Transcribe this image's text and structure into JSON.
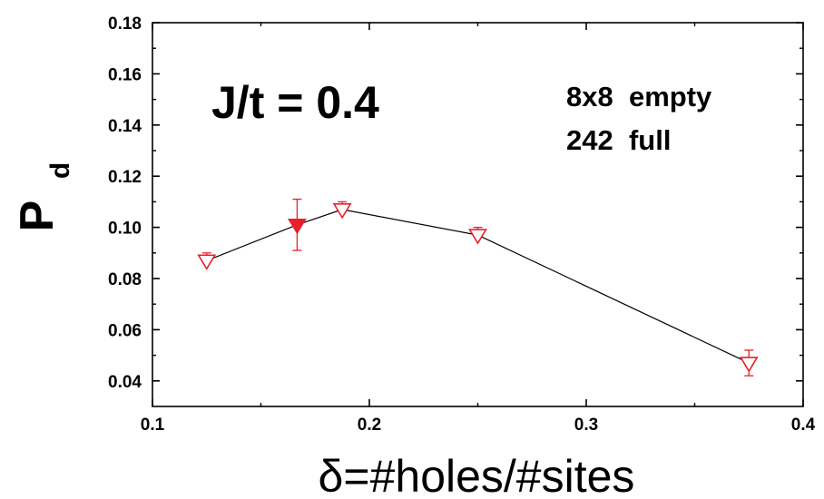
{
  "chart_data": {
    "type": "scatter",
    "xlabel": "δ=#holes/#sites",
    "ylabel": {
      "main": "P",
      "subscript": "d"
    },
    "xlim": [
      0.1,
      0.4
    ],
    "ylim": [
      0.03,
      0.18
    ],
    "x_ticks": [
      "0.1",
      "0.2",
      "0.3",
      "0.4"
    ],
    "y_ticks": [
      "0.04",
      "0.06",
      "0.08",
      "0.10",
      "0.12",
      "0.14",
      "0.16",
      "0.18"
    ],
    "annotations": {
      "param": "J/t = 0.4",
      "legend_line1": "8x8  empty",
      "legend_line2": "242  full"
    },
    "grid": false,
    "colors": {
      "marker": "#e8202a",
      "line": "#000000",
      "axis": "#000000"
    },
    "series": [
      {
        "connecting_line": true,
        "points": [
          {
            "x": 0.125,
            "y": 0.087,
            "err": 0.003,
            "marker": "down-triangle-open"
          },
          {
            "x": 0.1667,
            "y": 0.101,
            "err": 0.01,
            "marker": "down-triangle-filled"
          },
          {
            "x": 0.1875,
            "y": 0.107,
            "err": 0.003,
            "marker": "down-triangle-open"
          },
          {
            "x": 0.25,
            "y": 0.097,
            "err": 0.003,
            "marker": "down-triangle-open"
          },
          {
            "x": 0.375,
            "y": 0.047,
            "err": 0.005,
            "marker": "down-triangle-open"
          }
        ]
      }
    ]
  }
}
